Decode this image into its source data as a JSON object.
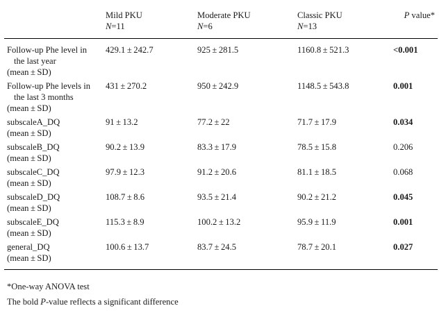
{
  "header": {
    "col1": {
      "line1": "Mild PKU",
      "n_label": "N",
      "n_value": "=11"
    },
    "col2": {
      "line1": "Moderate PKU",
      "n_label": "N",
      "n_value": "=6"
    },
    "col3": {
      "line1": "Classic PKU",
      "n_label": "N",
      "n_value": "=13"
    },
    "col4": {
      "italic": "P",
      "rest": " value*"
    }
  },
  "rows": [
    {
      "label_line1": "Follow-up Phe level in",
      "label_indent": "the last year",
      "label_last": "(mean ± SD)",
      "mild": "429.1 ± 242.7",
      "moderate": "925 ± 281.5",
      "classic": "1160.8 ± 521.3",
      "p": "<0.001",
      "bold": true
    },
    {
      "label_line1": "Follow-up Phe levels in",
      "label_indent": "the last 3 months",
      "label_last": "(mean ± SD)",
      "mild": "431 ± 270.2",
      "moderate": "950 ± 242.9",
      "classic": "1148.5 ± 543.8",
      "p": "0.001",
      "bold": true
    },
    {
      "label_line1": "subscaleA_DQ",
      "label_indent": "",
      "label_last": "(mean ± SD)",
      "mild": "91 ± 13.2",
      "moderate": "77.2 ± 22",
      "classic": "71.7 ± 17.9",
      "p": "0.034",
      "bold": true
    },
    {
      "label_line1": "subscaleB_DQ",
      "label_indent": "",
      "label_last": "(mean ± SD)",
      "mild": "90.2 ± 13.9",
      "moderate": "83.3 ± 17.9",
      "classic": "78.5 ± 15.8",
      "p": "0.206",
      "bold": false
    },
    {
      "label_line1": "subscaleC_DQ",
      "label_indent": "",
      "label_last": "(mean ± SD)",
      "mild": "97.9 ± 12.3",
      "moderate": "91.2 ± 20.6",
      "classic": "81.1 ± 18.5",
      "p": "0.068",
      "bold": false
    },
    {
      "label_line1": "subscaleD_DQ",
      "label_indent": "",
      "label_last": "(mean ± SD)",
      "mild": "108.7 ± 8.6",
      "moderate": "93.5 ± 21.4",
      "classic": "90.2 ± 21.2",
      "p": "0.045",
      "bold": true
    },
    {
      "label_line1": "subscaleE_DQ",
      "label_indent": "",
      "label_last": "(mean ± SD)",
      "mild": "115.3 ± 8.9",
      "moderate": "100.2 ± 13.2",
      "classic": "95.9 ± 11.9",
      "p": "0.001",
      "bold": true
    },
    {
      "label_line1": "general_DQ",
      "label_indent": "",
      "label_last": "(mean ± SD)",
      "mild": "100.6 ± 13.7",
      "moderate": "83.7 ± 24.5",
      "classic": "78.7 ± 20.1",
      "p": "0.027",
      "bold": true
    }
  ],
  "notes": {
    "footnote1": "*One-way ANOVA test",
    "footnote2_pre": "The bold ",
    "footnote2_italic": "P",
    "footnote2_post": "-value reflects a significant difference"
  }
}
